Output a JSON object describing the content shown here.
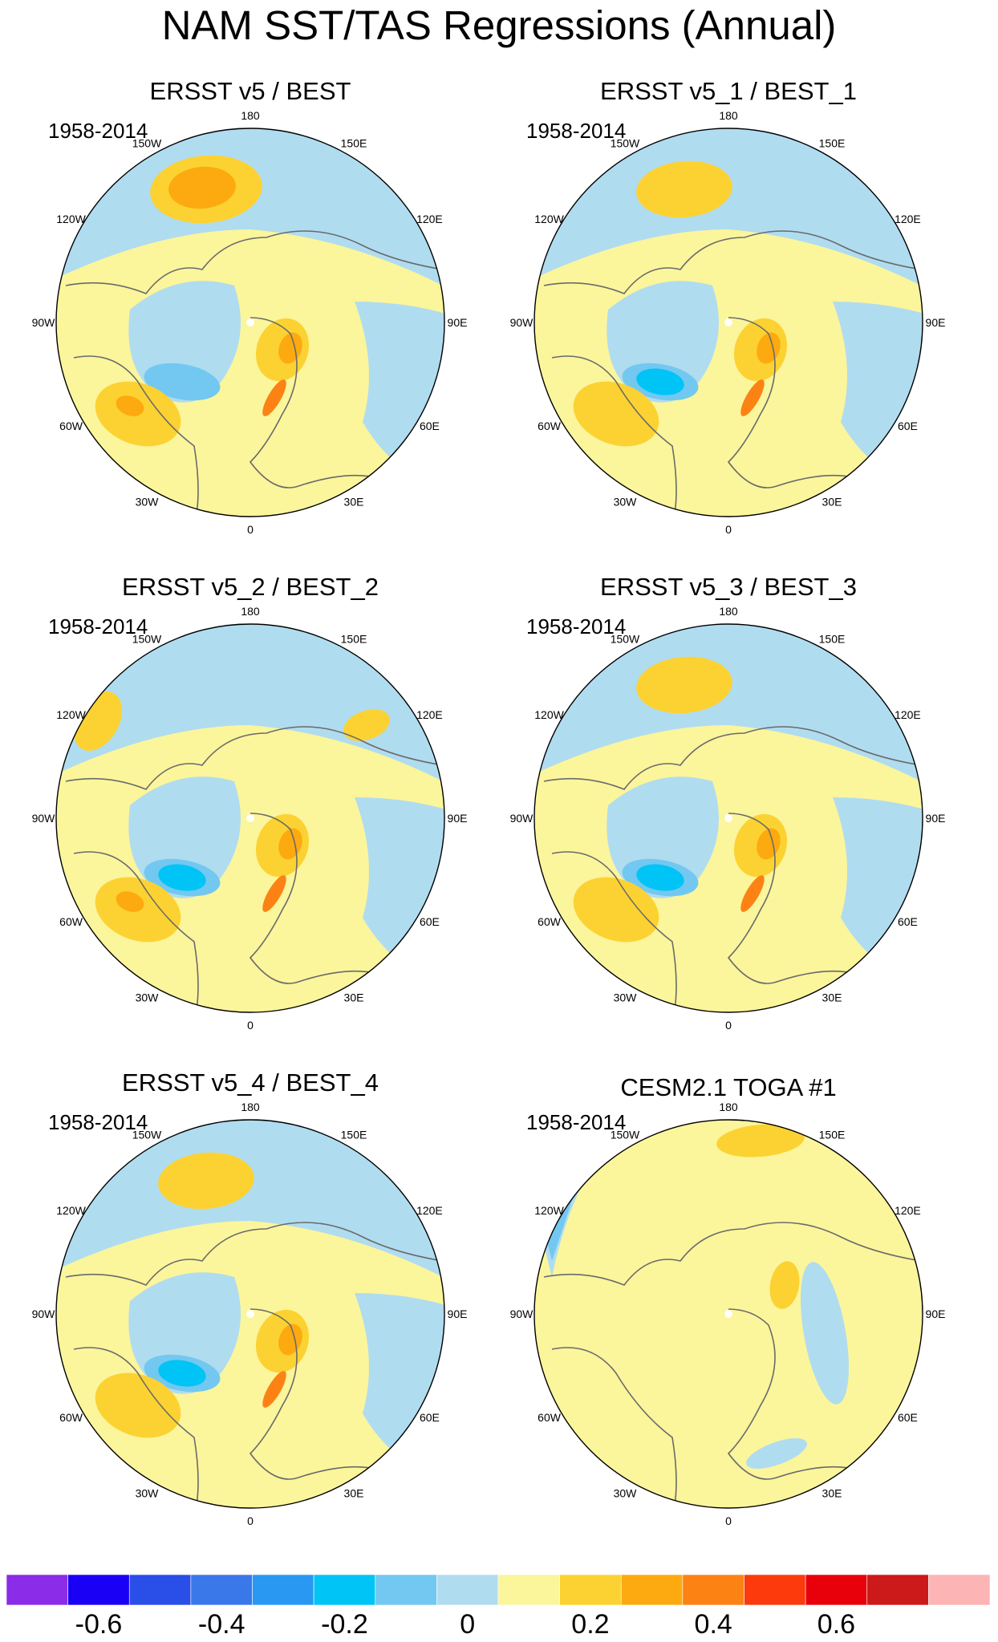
{
  "title": "NAM SST/TAS Regressions (Annual)",
  "panels": [
    {
      "title": "ERSST v5 / BEST",
      "period": "1958-2014"
    },
    {
      "title": "ERSST v5_1 / BEST_1",
      "period": "1958-2014"
    },
    {
      "title": "ERSST v5_2 / BEST_2",
      "period": "1958-2014"
    },
    {
      "title": "ERSST v5_3 / BEST_3",
      "period": "1958-2014"
    },
    {
      "title": "ERSST v5_4 / BEST_4",
      "period": "1958-2014"
    },
    {
      "title": "CESM2.1 TOGA #1",
      "period": "1958-2014"
    }
  ],
  "longitude_labels": [
    "180",
    "150E",
    "120E",
    "90E",
    "60E",
    "30E",
    "0",
    "30W",
    "60W",
    "90W",
    "120W",
    "150W"
  ],
  "colorbar": {
    "colors": [
      "#8a2ce8",
      "#1a00f5",
      "#2a4ee8",
      "#3a78ea",
      "#2898f2",
      "#00c4f5",
      "#72c8f0",
      "#b0dcf0",
      "#fbf59c",
      "#fcd232",
      "#fcaa10",
      "#fc8214",
      "#fc3a0c",
      "#e8000a",
      "#cc1a1a",
      "#fcb4b4"
    ],
    "tick_labels": [
      "-0.6",
      "-0.4",
      "-0.2",
      "0",
      "0.2",
      "0.4",
      "0.6"
    ]
  }
}
